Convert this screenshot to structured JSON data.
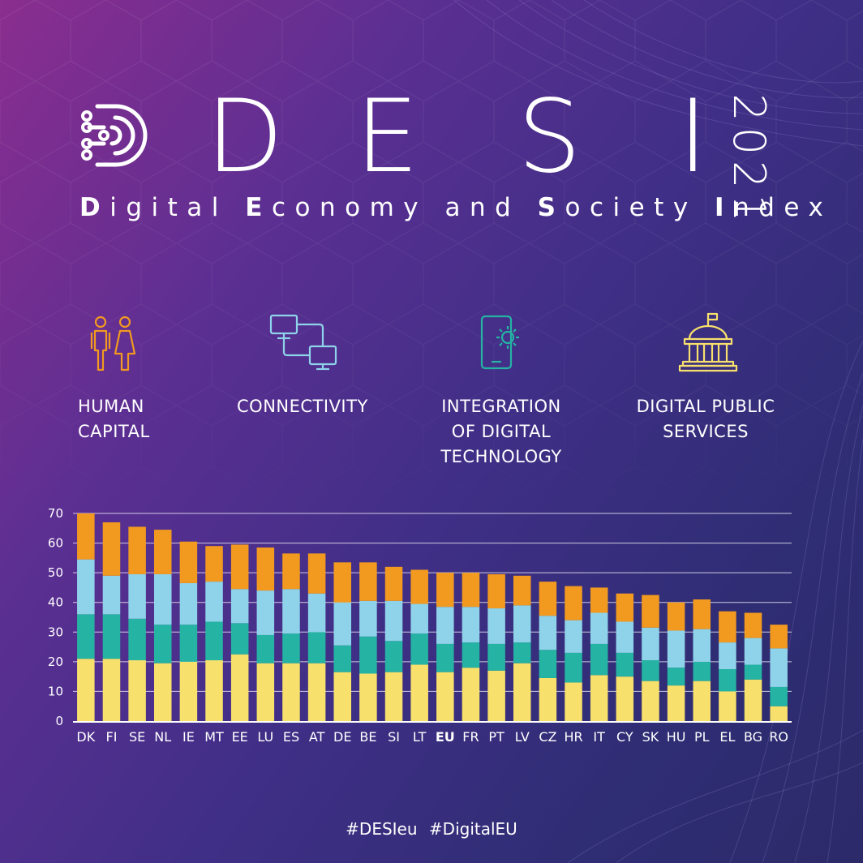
{
  "header": {
    "logo_letters": [
      "D",
      "E",
      "S",
      "I"
    ],
    "year": "2021",
    "subtitle_words": [
      {
        "initial": "D",
        "rest": "igital "
      },
      {
        "initial": "E",
        "rest": "conomy and "
      },
      {
        "initial": "S",
        "rest": "ociety "
      },
      {
        "initial": "I",
        "rest": "ndex"
      }
    ]
  },
  "dimensions": [
    {
      "icon": "people-icon",
      "lines": [
        "HUMAN",
        "CAPITAL"
      ],
      "color": "#f29a1f"
    },
    {
      "icon": "network-icon",
      "lines": [
        "CONNECTIVITY"
      ],
      "color": "#8fd3ea"
    },
    {
      "icon": "smartphone-gear-icon",
      "lines": [
        "INTEGRATION",
        "OF DIGITAL",
        "TECHNOLOGY"
      ],
      "color": "#25b3a3"
    },
    {
      "icon": "government-building-icon",
      "lines": [
        "DIGITAL PUBLIC",
        "SERVICES"
      ],
      "color": "#f7e06b"
    }
  ],
  "chart_data": {
    "type": "bar",
    "stacked": true,
    "categories": [
      "DK",
      "FI",
      "SE",
      "NL",
      "IE",
      "MT",
      "EE",
      "LU",
      "ES",
      "AT",
      "DE",
      "BE",
      "SI",
      "LT",
      "EU",
      "FR",
      "PT",
      "LV",
      "CZ",
      "HR",
      "IT",
      "CY",
      "SK",
      "HU",
      "PL",
      "EL",
      "BG",
      "RO"
    ],
    "highlight_category": "EU",
    "series": [
      {
        "name": "Digital public services",
        "color": "#f7e06b",
        "values": [
          21,
          21,
          20.5,
          19.5,
          20,
          20.5,
          22.5,
          19.5,
          19.5,
          19.5,
          16.5,
          16,
          16.5,
          19,
          16.5,
          18,
          17,
          19.5,
          14.5,
          13,
          15.5,
          15,
          13.5,
          12,
          13.5,
          10,
          14,
          5
        ]
      },
      {
        "name": "Integration of digital technology",
        "color": "#25b3a3",
        "values": [
          15,
          15,
          14,
          13,
          12.5,
          13,
          10.5,
          9.5,
          10,
          10.5,
          9,
          12.5,
          10.5,
          10.5,
          9.5,
          8.5,
          9,
          7,
          9.5,
          10,
          10.5,
          8,
          7,
          6,
          6.5,
          7.5,
          5,
          6.5
        ]
      },
      {
        "name": "Connectivity",
        "color": "#8fd3ea",
        "values": [
          18.5,
          13,
          15,
          17,
          14,
          13.5,
          11.5,
          15,
          15,
          13,
          14.5,
          12,
          13.5,
          10,
          12.5,
          12,
          12,
          12.5,
          11.5,
          11,
          10.5,
          10.5,
          11,
          12.5,
          11,
          9,
          9,
          13
        ]
      },
      {
        "name": "Human capital",
        "color": "#f29a1f",
        "values": [
          15.5,
          18,
          16,
          15,
          14,
          12,
          15,
          14.5,
          12,
          13.5,
          13.5,
          13,
          11.5,
          11.5,
          11.5,
          11.5,
          11.5,
          10,
          11.5,
          11.5,
          8.5,
          9.5,
          11,
          9.5,
          10,
          10.5,
          8.5,
          8
        ]
      }
    ],
    "y_ticks": [
      0,
      10,
      20,
      30,
      40,
      50,
      60,
      70
    ],
    "ylim": [
      0,
      70
    ],
    "grid": true
  },
  "footer": {
    "hashtags": [
      "#DESIeu",
      "#DigitalEU"
    ]
  }
}
